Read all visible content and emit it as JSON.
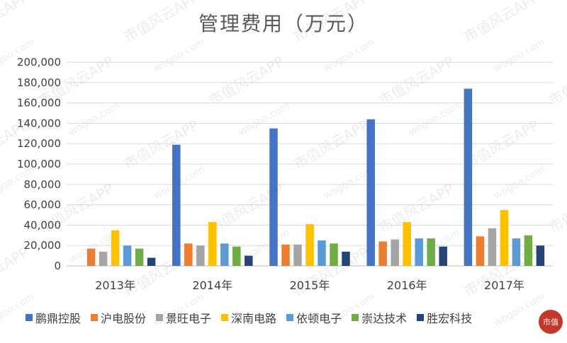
{
  "chart_data": {
    "type": "bar",
    "title": "管理费用（万元）",
    "categories": [
      "2013年",
      "2014年",
      "2015年",
      "2016年",
      "2017年"
    ],
    "ylim": [
      0,
      200000
    ],
    "yticks": [
      "0",
      "20,000",
      "40,000",
      "60,000",
      "80,000",
      "100,000",
      "120,000",
      "140,000",
      "160,000",
      "180,000",
      "200,000"
    ],
    "ytick_values": [
      0,
      20000,
      40000,
      60000,
      80000,
      100000,
      120000,
      140000,
      160000,
      180000,
      200000
    ],
    "grid": true,
    "legend_position": "bottom",
    "series": [
      {
        "name": "鹏鼎控股",
        "color": "#4472C4",
        "values": [
          null,
          119000,
          135000,
          144000,
          174000
        ]
      },
      {
        "name": "沪电股份",
        "color": "#ED7D31",
        "values": [
          17000,
          22000,
          21000,
          24000,
          29000
        ]
      },
      {
        "name": "景旺电子",
        "color": "#A5A5A5",
        "values": [
          14000,
          20000,
          21000,
          26000,
          37000
        ]
      },
      {
        "name": "深南电路",
        "color": "#FFC000",
        "values": [
          35000,
          43000,
          41000,
          43000,
          55000
        ]
      },
      {
        "name": "依顿电子",
        "color": "#5B9BD5",
        "values": [
          20000,
          22000,
          25000,
          27000,
          27000
        ]
      },
      {
        "name": "崇达技术",
        "color": "#70AD47",
        "values": [
          17000,
          19000,
          22000,
          27000,
          30000
        ]
      },
      {
        "name": "胜宏科技",
        "color": "#264478",
        "values": [
          8000,
          10000,
          14000,
          19000,
          20000
        ]
      }
    ]
  },
  "watermark": "市值风云APP",
  "watermark_url": "wogoo.com",
  "logo_text": "市值"
}
